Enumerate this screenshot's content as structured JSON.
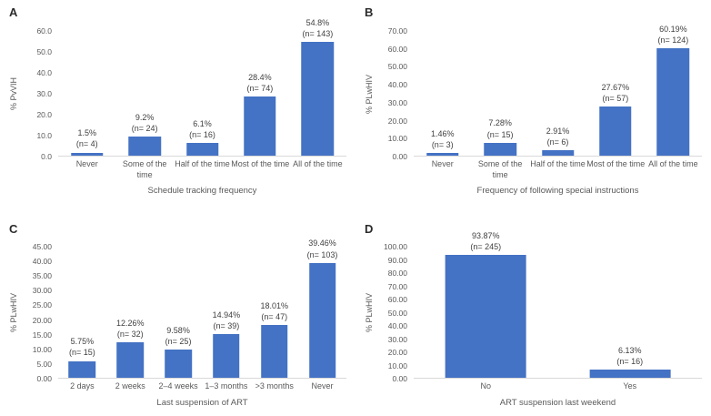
{
  "colors": {
    "bar": "#4472C4",
    "axis_line": "#D9D9D9",
    "tick_text": "#595959",
    "data_label_text": "#404040",
    "panel_letter_text": "#2B2B2B"
  },
  "chart_data": [
    {
      "type": "bar",
      "panel_label": "A",
      "ylabel": "% PvVIH",
      "xlabel": "Schedule tracking frequency",
      "ylim": [
        0,
        60
      ],
      "ytick_step": 10,
      "ytick_labels": [
        "0.0",
        "10.0",
        "20.0",
        "30.0",
        "40.0",
        "50.0",
        "60.0"
      ],
      "grid": false,
      "legend": false,
      "categories": [
        "Never",
        "Some of the time",
        "Half of the time",
        "Most of the time",
        "All of the time"
      ],
      "category_display": [
        [
          "Never"
        ],
        [
          "Some of the",
          "time"
        ],
        [
          "Half of the time"
        ],
        [
          "Most of the time"
        ],
        [
          "All of the time"
        ]
      ],
      "values": [
        1.5,
        9.2,
        6.1,
        28.4,
        54.8
      ],
      "counts": [
        4,
        24,
        16,
        74,
        143
      ],
      "bar_labels": [
        [
          "1.5%",
          "(n= 4)"
        ],
        [
          "9.2%",
          "(n= 24)"
        ],
        [
          "6.1%",
          "(n= 16)"
        ],
        [
          "28.4%",
          "(n= 74)"
        ],
        [
          "54.8%",
          "(n= 143)"
        ]
      ]
    },
    {
      "type": "bar",
      "panel_label": "B",
      "ylabel": "% PLwHIV",
      "xlabel": "Frequency of following special instructions",
      "ylim": [
        0,
        70
      ],
      "ytick_step": 10,
      "ytick_labels": [
        "0.00",
        "10.00",
        "20.00",
        "30.00",
        "40.00",
        "50.00",
        "60.00",
        "70.00"
      ],
      "grid": false,
      "legend": false,
      "categories": [
        "Never",
        "Some of the time",
        "Half of the time",
        "Most of the time",
        "All of the time"
      ],
      "category_display": [
        [
          "Never"
        ],
        [
          "Some of the",
          "time"
        ],
        [
          "Half of the time"
        ],
        [
          "Most of the time"
        ],
        [
          "All of the time"
        ]
      ],
      "values": [
        1.46,
        7.28,
        2.91,
        27.67,
        60.19
      ],
      "counts": [
        3,
        15,
        6,
        57,
        124
      ],
      "bar_labels": [
        [
          "1.46%",
          "(n= 3)"
        ],
        [
          "7.28%",
          "(n= 15)"
        ],
        [
          "2.91%",
          "(n= 6)"
        ],
        [
          "27.67%",
          "(n= 57)"
        ],
        [
          "60.19%",
          "(n= 124)"
        ]
      ]
    },
    {
      "type": "bar",
      "panel_label": "C",
      "ylabel": "% PLwHIV",
      "xlabel": "Last suspension of ART",
      "ylim": [
        0,
        45
      ],
      "ytick_step": 5,
      "ytick_labels": [
        "0.00",
        "5.00",
        "10.00",
        "15.00",
        "20.00",
        "25.00",
        "30.00",
        "35.00",
        "40.00",
        "45.00"
      ],
      "grid": false,
      "legend": false,
      "categories": [
        "2 days",
        "2 weeks",
        "2–4 weeks",
        "1–3 months",
        ">3 months",
        "Never"
      ],
      "category_display": [
        [
          "2 days"
        ],
        [
          "2 weeks"
        ],
        [
          "2–4 weeks"
        ],
        [
          "1–3 months"
        ],
        [
          ">3 months"
        ],
        [
          "Never"
        ]
      ],
      "values": [
        5.75,
        12.26,
        9.58,
        14.94,
        18.01,
        39.46
      ],
      "counts": [
        15,
        32,
        25,
        39,
        47,
        103
      ],
      "bar_labels": [
        [
          "5.75%",
          "(n= 15)"
        ],
        [
          "12.26%",
          "(n= 32)"
        ],
        [
          "9.58%",
          "(n= 25)"
        ],
        [
          "14.94%",
          "(n= 39)"
        ],
        [
          "18.01%",
          "(n= 47)"
        ],
        [
          "39.46%",
          "(n= 103)"
        ]
      ]
    },
    {
      "type": "bar",
      "panel_label": "D",
      "ylabel": "% PLwHIV",
      "xlabel": "ART suspension last weekend",
      "ylim": [
        0,
        100
      ],
      "ytick_step": 10,
      "ytick_labels": [
        "0.00",
        "10.00",
        "20.00",
        "30.00",
        "40.00",
        "50.00",
        "60.00",
        "70.00",
        "80.00",
        "90.00",
        "100.00"
      ],
      "grid": false,
      "legend": false,
      "categories": [
        "No",
        "Yes"
      ],
      "category_display": [
        [
          "No"
        ],
        [
          "Yes"
        ]
      ],
      "values": [
        93.87,
        6.13
      ],
      "counts": [
        245,
        16
      ],
      "bar_labels": [
        [
          "93.87%",
          "(n= 245)"
        ],
        [
          "6.13%",
          "(n= 16)"
        ]
      ]
    }
  ]
}
